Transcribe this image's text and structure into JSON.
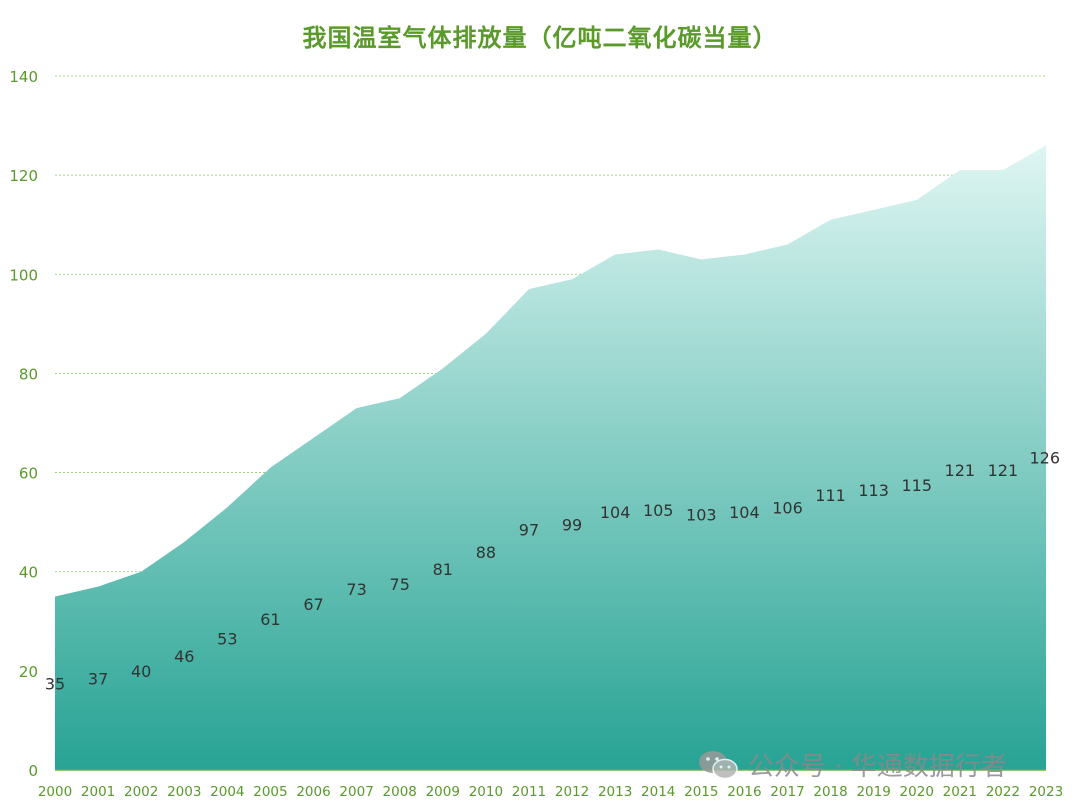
{
  "chart_data": {
    "type": "area",
    "title": "我国温室气体排放量（亿吨二氧化碳当量）",
    "categories": [
      "2000",
      "2001",
      "2002",
      "2003",
      "2004",
      "2005",
      "2006",
      "2007",
      "2008",
      "2009",
      "2010",
      "2011",
      "2012",
      "2013",
      "2014",
      "2015",
      "2016",
      "2017",
      "2018",
      "2019",
      "2020",
      "2021",
      "2022",
      "2023"
    ],
    "values": [
      35,
      37,
      40,
      46,
      53,
      61,
      67,
      73,
      75,
      81,
      88,
      97,
      99,
      104,
      105,
      103,
      104,
      106,
      111,
      113,
      115,
      121,
      121,
      126
    ],
    "ylim": [
      0,
      140
    ],
    "yticks": [
      0,
      20,
      40,
      60,
      80,
      100,
      120,
      140
    ],
    "grid": true,
    "colors": {
      "fill_top": "#dff6f3",
      "fill_bottom": "#27a394",
      "axis_text": "#5a9a2a",
      "grid": "#8fca6a",
      "label": "#333333"
    }
  },
  "watermark": {
    "icon": "wechat-icon",
    "text": "公众号 · 华通数据行者"
  }
}
